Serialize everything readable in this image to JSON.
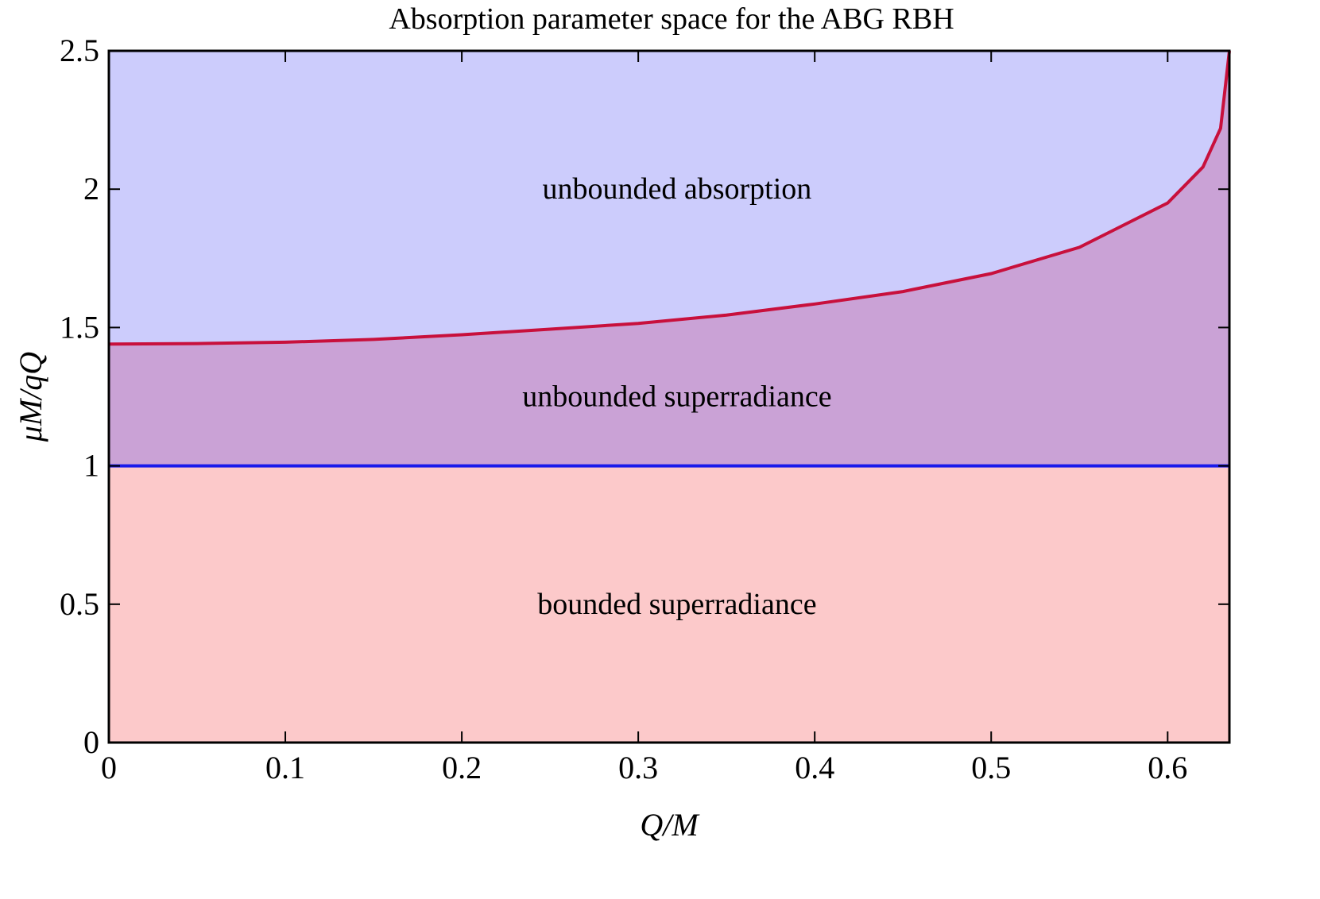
{
  "chart_data": {
    "type": "area",
    "title": "Absorption parameter space for the ABG RBH",
    "xlabel": "Q/M",
    "ylabel": "μM/qQ",
    "xlim": [
      0,
      0.635
    ],
    "ylim": [
      0,
      2.5
    ],
    "x_ticks": [
      0,
      0.1,
      0.2,
      0.3,
      0.4,
      0.5,
      0.6
    ],
    "x_tick_labels": [
      "0",
      "0.1",
      "0.2",
      "0.3",
      "0.4",
      "0.5",
      "0.6"
    ],
    "y_ticks": [
      0,
      0.5,
      1,
      1.5,
      2,
      2.5
    ],
    "y_tick_labels": [
      "0",
      "0.5",
      "1",
      "1.5",
      "2",
      "2.5"
    ],
    "grid": false,
    "series": [
      {
        "color": "#c8103c",
        "x": [
          0,
          0.05,
          0.1,
          0.15,
          0.2,
          0.25,
          0.3,
          0.35,
          0.4,
          0.45,
          0.5,
          0.55,
          0.6,
          0.62,
          0.63,
          0.635
        ],
        "y": [
          1.44,
          1.442,
          1.447,
          1.457,
          1.474,
          1.494,
          1.515,
          1.545,
          1.585,
          1.63,
          1.695,
          1.79,
          1.95,
          2.08,
          2.22,
          2.5
        ]
      },
      {
        "color": "#1a1aeb",
        "x": [
          0,
          0.635
        ],
        "y": [
          1,
          1
        ]
      }
    ],
    "regions": [
      {
        "label": "unbounded absorption",
        "color": "#ccccfc",
        "label_x": 0.317,
        "label_y": 2.0
      },
      {
        "label": "unbounded superradiance",
        "color": "#caa2d6",
        "label_x": 0.317,
        "label_y": 1.25
      },
      {
        "label": "bounded superradiance",
        "color": "#fcc9ca",
        "label_x": 0.317,
        "label_y": 0.5
      }
    ]
  }
}
